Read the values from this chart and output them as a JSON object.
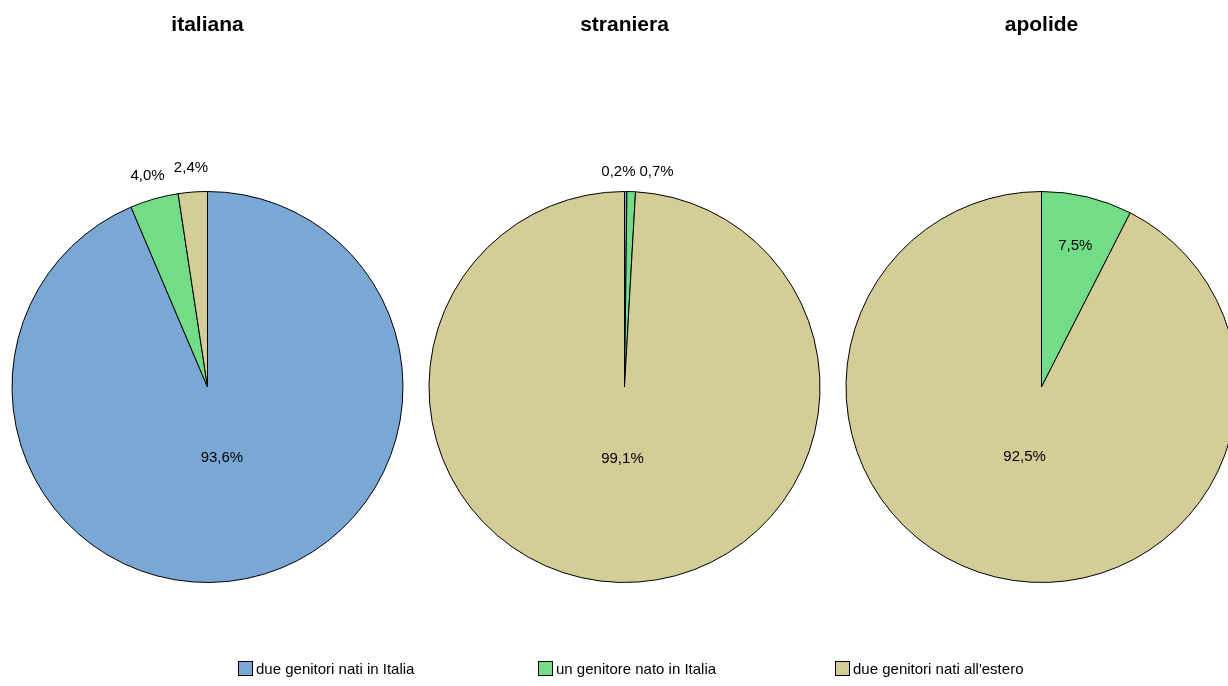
{
  "chart_data": [
    {
      "type": "pie",
      "title": "italiana",
      "categories": [
        "due genitori nati in Italia",
        "un genitore nato in Italia",
        "due genitori nati all'estero"
      ],
      "values": [
        93.6,
        4.0,
        2.4
      ],
      "value_labels": [
        "93,6%",
        "4,0%",
        "2,4%"
      ],
      "colors": [
        "#7ba7d5",
        "#72dd86",
        "#d4cd98"
      ],
      "legend": "bottom"
    },
    {
      "type": "pie",
      "title": "straniera",
      "categories": [
        null,
        null,
        null
      ],
      "values": [
        0.2,
        0.7,
        99.1
      ],
      "value_labels": [
        "0,2%",
        "0,7%",
        "99,1%"
      ],
      "colors": [
        "#7ba7d5",
        "#72dd86",
        "#d4cd98"
      ]
    },
    {
      "type": "pie",
      "title": "apolide",
      "categories": [
        null,
        null,
        null
      ],
      "values": [
        0,
        7.5,
        92.5
      ],
      "value_labels": [
        null,
        "7,5%",
        "92,5%"
      ],
      "colors": [
        "#7ba7d5",
        "#72dd86",
        "#d4cd98"
      ]
    }
  ]
}
